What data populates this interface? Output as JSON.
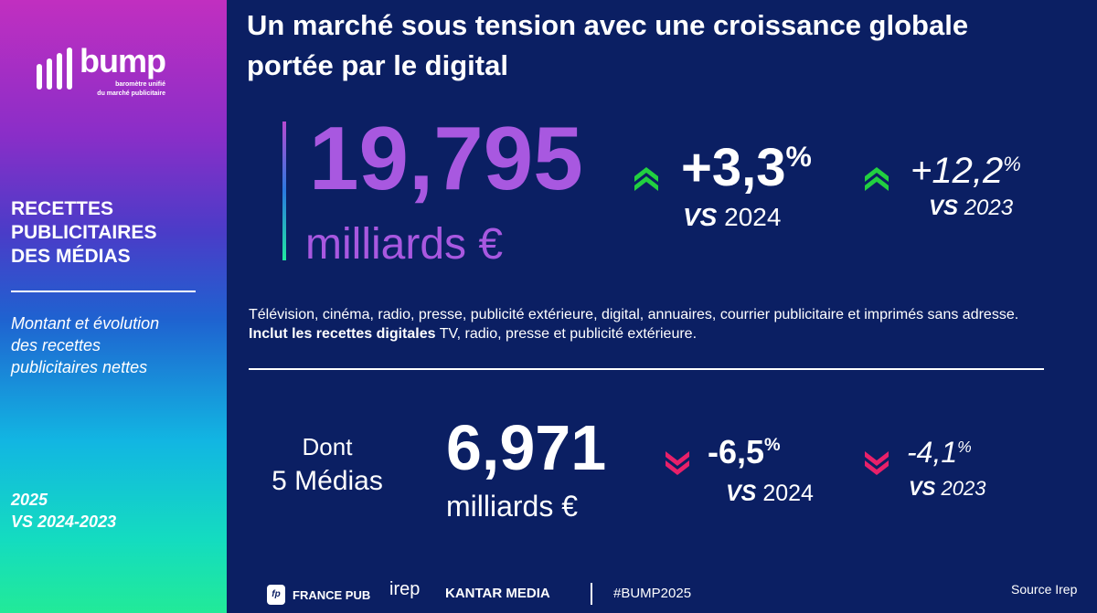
{
  "sidebar": {
    "logo": {
      "word": "bump",
      "subtitle_1": "baromètre unifié",
      "subtitle_2": "du marché publicitaire"
    },
    "title_lines": [
      "RECETTES",
      "PUBLICITAIRES",
      "DES MÉDIAS"
    ],
    "description_lines": [
      "Montant et évolution",
      "des recettes",
      "publicitaires nettes"
    ],
    "period_lines": [
      "2025",
      "VS 2024-2023"
    ],
    "gradient_colors": [
      "#c12fc0",
      "#8a2ec8",
      "#1f62d0",
      "#12b6e2",
      "#22ea98"
    ]
  },
  "header": {
    "title_line_1": "Un marché sous tension avec une croissance globale",
    "title_line_2": "portée par le digital"
  },
  "total": {
    "value": "19,795",
    "unit": "milliards €",
    "color": "#a858e0",
    "evolution_2024": {
      "value": "+3,3",
      "percent": "%",
      "vs": "VS",
      "year": "2024",
      "direction": "up",
      "icon": "double-chevron-up-icon",
      "color": "#22d040"
    },
    "evolution_2023": {
      "value": "+12,2",
      "percent": "%",
      "vs": "VS",
      "year": "2023",
      "direction": "up",
      "icon": "double-chevron-up-icon",
      "color": "#22d040"
    }
  },
  "scope": {
    "line_1": "Télévision, cinéma, radio, presse, publicité extérieure, digital, annuaires, courrier publicitaire et imprimés sans adresse.",
    "line_2_bold": "Inclut les recettes digitales",
    "line_2_rest": " TV, radio, presse et publicité extérieure."
  },
  "five_media": {
    "label_1": "Dont",
    "label_2": "5 Médias",
    "value": "6,971",
    "unit": "milliards €",
    "evolution_2024": {
      "value": "-6,5",
      "percent": "%",
      "vs": "VS",
      "year": "2024",
      "direction": "down",
      "icon": "double-chevron-down-icon",
      "color": "#e8206a"
    },
    "evolution_2023": {
      "value": "-4,1",
      "percent": "%",
      "vs": "VS",
      "year": "2023",
      "direction": "down",
      "icon": "double-chevron-down-icon",
      "color": "#e8206a"
    }
  },
  "footer": {
    "partners": [
      "FRANCE PUB",
      "irep",
      "KANTAR MEDIA"
    ],
    "hashtag": "#BUMP2025",
    "source": "Source Irep"
  }
}
